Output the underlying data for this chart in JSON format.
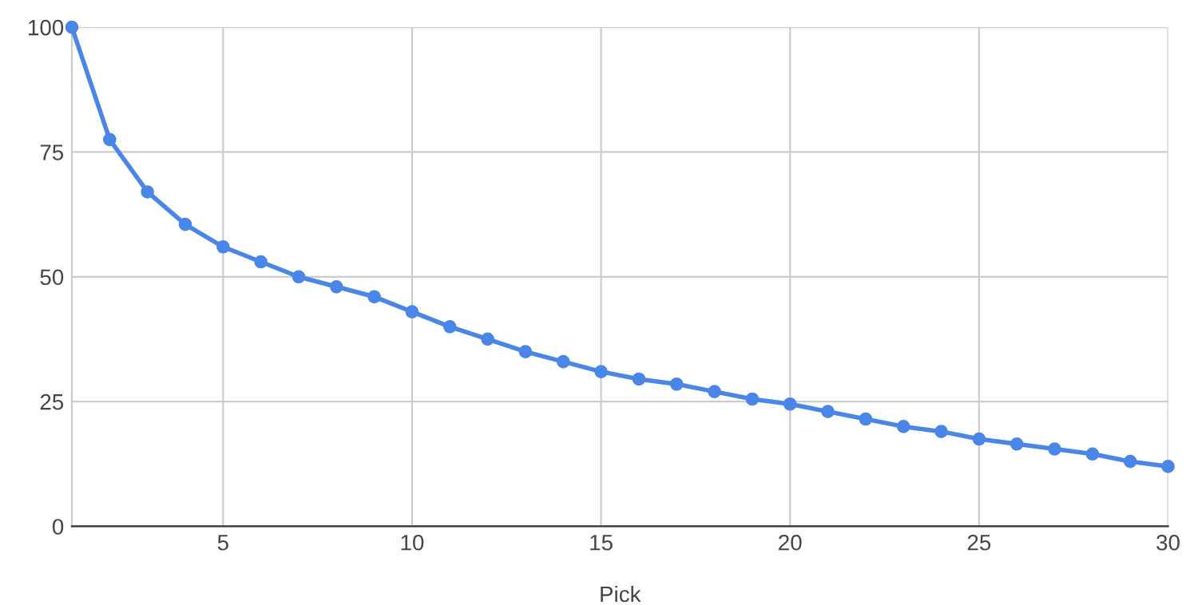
{
  "chart_data": {
    "type": "line",
    "xlabel": "Pick",
    "x": [
      1,
      2,
      3,
      4,
      5,
      6,
      7,
      8,
      9,
      10,
      11,
      12,
      13,
      14,
      15,
      16,
      17,
      18,
      19,
      20,
      21,
      22,
      23,
      24,
      25,
      26,
      27,
      28,
      29,
      30
    ],
    "series": [
      {
        "color": "#4a86e8",
        "values": [
          100,
          77.5,
          67,
          60.5,
          56,
          53,
          50,
          48,
          46,
          43,
          40,
          37.5,
          35,
          33,
          31,
          29.5,
          28.5,
          27,
          25.5,
          24.5,
          23,
          21.5,
          20,
          19,
          17.5,
          16.5,
          15.5,
          14.5,
          13,
          12
        ]
      }
    ],
    "xlim": [
      1,
      30
    ],
    "xticks": [
      5,
      10,
      15,
      20,
      25,
      30
    ],
    "ylim": [
      0,
      100
    ],
    "yticks": [
      0,
      25,
      50,
      75,
      100
    ],
    "grid": true,
    "marker": "circle",
    "line_style": "solid"
  }
}
